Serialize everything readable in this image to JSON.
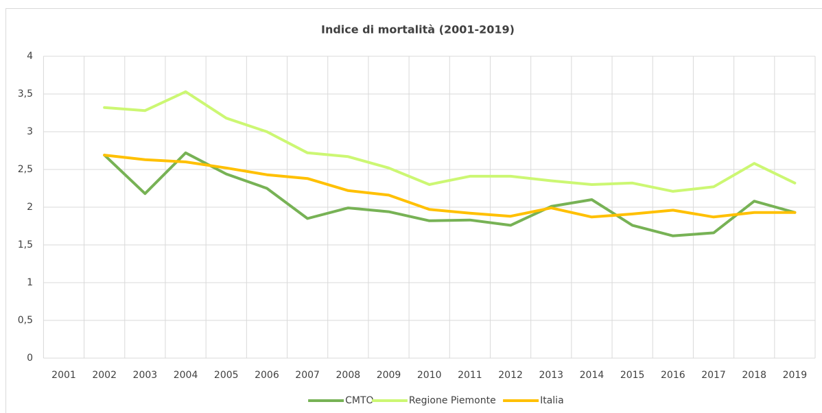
{
  "chart_data": {
    "type": "line",
    "title": "Indice di mortalità (2001-2019)",
    "categories": [
      "2001",
      "2002",
      "2003",
      "2004",
      "2005",
      "2006",
      "2007",
      "2008",
      "2009",
      "2010",
      "2011",
      "2012",
      "2013",
      "2014",
      "2015",
      "2016",
      "2017",
      "2018",
      "2019"
    ],
    "series": [
      {
        "name": "CMTO",
        "color": "#77b255",
        "values": [
          null,
          2.69,
          2.18,
          2.72,
          2.44,
          2.25,
          1.85,
          1.99,
          1.94,
          1.82,
          1.83,
          1.76,
          2.01,
          2.1,
          1.76,
          1.62,
          1.66,
          2.08,
          1.93
        ]
      },
      {
        "name": "Regione Piemonte",
        "color": "#ccf773",
        "values": [
          null,
          3.32,
          3.28,
          3.53,
          3.18,
          3.0,
          2.72,
          2.67,
          2.52,
          2.3,
          2.41,
          2.41,
          2.35,
          2.3,
          2.32,
          2.21,
          2.27,
          2.58,
          2.32
        ]
      },
      {
        "name": "Italia",
        "color": "#ffc000",
        "values": [
          null,
          2.69,
          2.63,
          2.6,
          2.52,
          2.43,
          2.38,
          2.22,
          2.16,
          1.97,
          1.92,
          1.88,
          1.99,
          1.87,
          1.91,
          1.96,
          1.87,
          1.93,
          1.93
        ]
      }
    ],
    "ylim": [
      0,
      4
    ],
    "yticks": [
      0,
      {
        "value": 0.5,
        "label": "0,5"
      },
      1,
      {
        "value": 1.5,
        "label": "1,5"
      },
      2,
      {
        "value": 2.5,
        "label": "2,5"
      },
      3,
      {
        "value": 3.5,
        "label": "3,5"
      },
      4
    ],
    "grid": true,
    "legend": "bottom"
  }
}
